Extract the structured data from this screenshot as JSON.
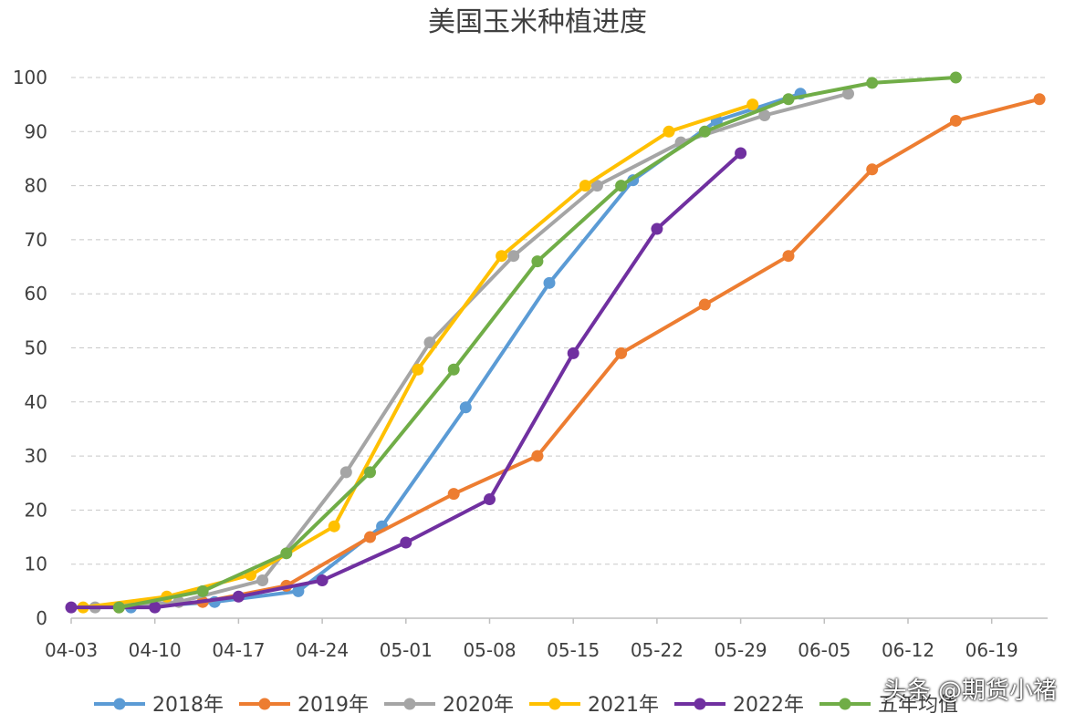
{
  "chart_data": {
    "type": "line",
    "title": "美国玉米种植进度",
    "xlabel": "",
    "ylabel": "",
    "ylim": [
      0,
      100
    ],
    "yticks": [
      0,
      10,
      20,
      30,
      40,
      50,
      60,
      70,
      80,
      90,
      100
    ],
    "xticks": [
      "04-03",
      "04-10",
      "04-17",
      "04-24",
      "05-01",
      "05-08",
      "05-15",
      "05-22",
      "05-29",
      "06-05",
      "06-12",
      "06-19"
    ],
    "grid": "horizontal dashed",
    "legend_position": "bottom",
    "series": [
      {
        "name": "2018年",
        "color": "#5b9bd5",
        "points": [
          [
            "04-08",
            2
          ],
          [
            "04-15",
            3
          ],
          [
            "04-22",
            5
          ],
          [
            "04-29",
            17
          ],
          [
            "05-06",
            39
          ],
          [
            "05-13",
            62
          ],
          [
            "05-20",
            81
          ],
          [
            "05-27",
            92
          ],
          [
            "06-03",
            97
          ]
        ]
      },
      {
        "name": "2019年",
        "color": "#ed7d31",
        "points": [
          [
            "04-07",
            2
          ],
          [
            "04-14",
            3
          ],
          [
            "04-21",
            6
          ],
          [
            "04-28",
            15
          ],
          [
            "05-05",
            23
          ],
          [
            "05-12",
            30
          ],
          [
            "05-19",
            49
          ],
          [
            "05-26",
            58
          ],
          [
            "06-02",
            67
          ],
          [
            "06-09",
            83
          ],
          [
            "06-16",
            92
          ],
          [
            "06-23",
            96
          ]
        ]
      },
      {
        "name": "2020年",
        "color": "#a5a5a5",
        "points": [
          [
            "04-05",
            2
          ],
          [
            "04-12",
            3
          ],
          [
            "04-19",
            7
          ],
          [
            "04-26",
            27
          ],
          [
            "05-03",
            51
          ],
          [
            "05-10",
            67
          ],
          [
            "05-17",
            80
          ],
          [
            "05-24",
            88
          ],
          [
            "05-31",
            93
          ],
          [
            "06-07",
            97
          ]
        ]
      },
      {
        "name": "2021年",
        "color": "#ffc000",
        "points": [
          [
            "04-04",
            2
          ],
          [
            "04-11",
            4
          ],
          [
            "04-18",
            8
          ],
          [
            "04-25",
            17
          ],
          [
            "05-02",
            46
          ],
          [
            "05-09",
            67
          ],
          [
            "05-16",
            80
          ],
          [
            "05-23",
            90
          ],
          [
            "05-30",
            95
          ]
        ]
      },
      {
        "name": "2022年",
        "color": "#7030a0",
        "points": [
          [
            "04-03",
            2
          ],
          [
            "04-10",
            2
          ],
          [
            "04-17",
            4
          ],
          [
            "04-24",
            7
          ],
          [
            "05-01",
            14
          ],
          [
            "05-08",
            22
          ],
          [
            "05-15",
            49
          ],
          [
            "05-22",
            72
          ],
          [
            "05-29",
            86
          ]
        ]
      },
      {
        "name": "五年均值",
        "color": "#70ad47",
        "points": [
          [
            "04-07",
            2
          ],
          [
            "04-14",
            5
          ],
          [
            "04-21",
            12
          ],
          [
            "04-28",
            27
          ],
          [
            "05-05",
            46
          ],
          [
            "05-12",
            66
          ],
          [
            "05-19",
            80
          ],
          [
            "05-26",
            90
          ],
          [
            "06-02",
            96
          ],
          [
            "06-09",
            99
          ],
          [
            "06-16",
            100
          ]
        ]
      }
    ]
  },
  "watermark": "头条 @期货小褚"
}
